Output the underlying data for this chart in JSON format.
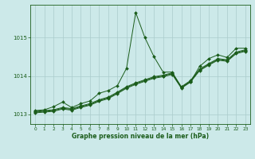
{
  "background_color": "#cce9e9",
  "plot_bg_color": "#cce9e9",
  "grid_color": "#aacccc",
  "line_color": "#1a5c1a",
  "marker_color": "#1a5c1a",
  "xlabel": "Graphe pression niveau de la mer (hPa)",
  "xlim": [
    -0.5,
    23.5
  ],
  "ylim": [
    1012.75,
    1015.85
  ],
  "yticks": [
    1013,
    1014,
    1015
  ],
  "xticks": [
    0,
    1,
    2,
    3,
    4,
    5,
    6,
    7,
    8,
    9,
    10,
    11,
    12,
    13,
    14,
    15,
    16,
    17,
    18,
    19,
    20,
    21,
    22,
    23
  ],
  "series_main": {
    "x": [
      0,
      1,
      2,
      3,
      4,
      5,
      6,
      7,
      8,
      9,
      10,
      11,
      12,
      13,
      14,
      15,
      16,
      17,
      18,
      19,
      20,
      21,
      22,
      23
    ],
    "y": [
      1013.1,
      1013.12,
      1013.2,
      1013.32,
      1013.18,
      1013.28,
      1013.35,
      1013.55,
      1013.62,
      1013.75,
      1014.2,
      1015.65,
      1015.0,
      1014.5,
      1014.1,
      1014.1,
      1013.7,
      1013.85,
      1014.25,
      1014.45,
      1014.55,
      1014.48,
      1014.72,
      1014.72
    ]
  },
  "series_lin1": {
    "x": [
      0,
      1,
      2,
      3,
      4,
      5,
      6,
      7,
      8,
      9,
      10,
      11,
      12,
      13,
      14,
      15,
      16,
      17,
      18,
      19,
      20,
      21,
      22,
      23
    ],
    "y": [
      1013.08,
      1013.1,
      1013.12,
      1013.18,
      1013.15,
      1013.22,
      1013.28,
      1013.38,
      1013.45,
      1013.58,
      1013.72,
      1013.82,
      1013.9,
      1013.98,
      1014.02,
      1014.08,
      1013.72,
      1013.88,
      1014.18,
      1014.32,
      1014.45,
      1014.42,
      1014.62,
      1014.68
    ]
  },
  "series_lin2": {
    "x": [
      0,
      1,
      2,
      3,
      4,
      5,
      6,
      7,
      8,
      9,
      10,
      11,
      12,
      13,
      14,
      15,
      16,
      17,
      18,
      19,
      20,
      21,
      22,
      23
    ],
    "y": [
      1013.06,
      1013.08,
      1013.1,
      1013.16,
      1013.13,
      1013.2,
      1013.26,
      1013.36,
      1013.43,
      1013.56,
      1013.7,
      1013.8,
      1013.88,
      1013.96,
      1014.0,
      1014.06,
      1013.7,
      1013.86,
      1014.16,
      1014.3,
      1014.43,
      1014.4,
      1014.6,
      1014.66
    ]
  },
  "series_lin3": {
    "x": [
      0,
      1,
      2,
      3,
      4,
      5,
      6,
      7,
      8,
      9,
      10,
      11,
      12,
      13,
      14,
      15,
      16,
      17,
      18,
      19,
      20,
      21,
      22,
      23
    ],
    "y": [
      1013.04,
      1013.06,
      1013.08,
      1013.14,
      1013.11,
      1013.18,
      1013.24,
      1013.34,
      1013.41,
      1013.54,
      1013.68,
      1013.78,
      1013.86,
      1013.94,
      1013.98,
      1014.04,
      1013.68,
      1013.84,
      1014.14,
      1014.28,
      1014.41,
      1014.38,
      1014.58,
      1014.64
    ]
  }
}
